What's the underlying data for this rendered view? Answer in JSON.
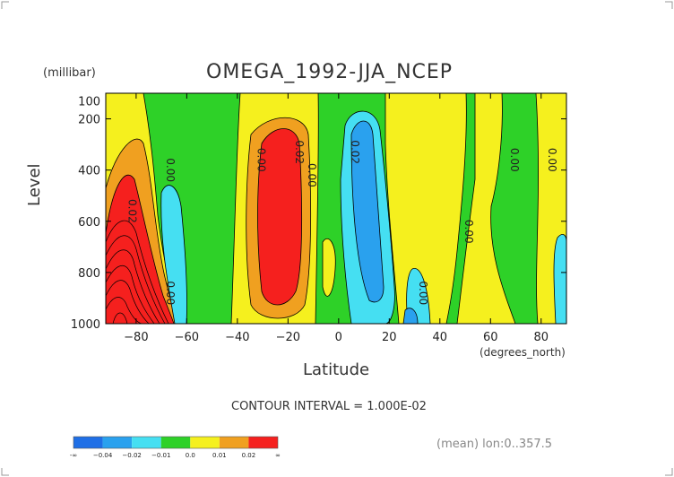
{
  "chart_data": {
    "type": "heatmap",
    "title": "OMEGA_1992-JJA_NCEP",
    "ylabel": "Level",
    "yunit": "(millibar)",
    "xlabel": "Latitude",
    "xunit": "(degrees_north)",
    "xlim": [
      -92,
      90
    ],
    "ylim": [
      1000,
      100
    ],
    "x_ticks": [
      -80,
      -60,
      -40,
      -20,
      0,
      20,
      40,
      60,
      80
    ],
    "y_ticks": [
      200,
      400,
      600,
      800,
      1000
    ],
    "contour_interval_text": "CONTOUR INTERVAL = 1.000E-02",
    "colorbar": {
      "labels": [
        "-∞",
        "−0.04",
        "−0.02",
        "−0.01",
        "0.0",
        "0.01",
        "0.02",
        "∞"
      ],
      "colors": [
        "#1f6fe6",
        "#2aa1ee",
        "#45dff2",
        "#2ed128",
        "#f5f01e",
        "#f0a020",
        "#f5201e"
      ]
    },
    "contour_labels": [
      "0.02",
      "0.00",
      "0.00",
      "0.02",
      "0.00",
      "0.02",
      "0.00",
      "0.00",
      "0.00",
      "0.00",
      "0.00"
    ],
    "footnote": "(mean) lon:0..357.5"
  }
}
